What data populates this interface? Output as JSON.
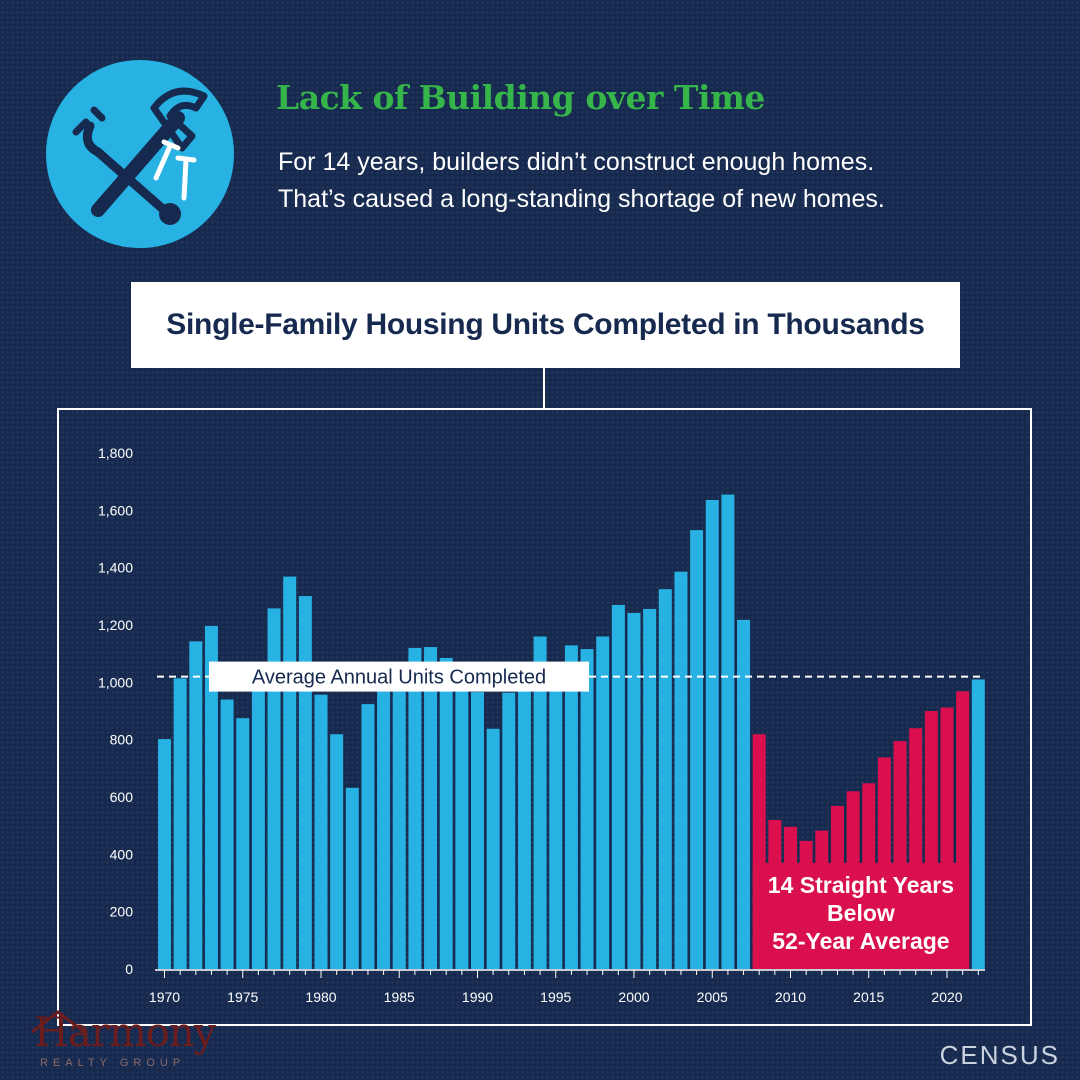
{
  "header": {
    "title": "Lack of Building over Time",
    "subtitle_line1": "For 14 years, builders didn’t construct enough homes.",
    "subtitle_line2": "That’s caused a long-standing shortage of new homes."
  },
  "icons": {
    "main": "hammer-wrench-nails-icon"
  },
  "colors": {
    "background": "#16294f",
    "accent_blue": "#27b2e3",
    "accent_green": "#35b54a",
    "highlight_red": "#d90f4e",
    "icon_dark": "#16294f"
  },
  "chart_data": {
    "type": "bar",
    "title": "Single-Family Housing Units Completed in Thousands",
    "xlabel": "",
    "ylabel": "",
    "ylim": [
      0,
      1800
    ],
    "y_ticks": [
      "0",
      "200",
      "400",
      "600",
      "800",
      "1,000",
      "1,200",
      "1,400",
      "1,600",
      "1,800"
    ],
    "x_tick_labels": [
      "1970",
      "1975",
      "1980",
      "1985",
      "1990",
      "1995",
      "2000",
      "2005",
      "2010",
      "2015",
      "2020"
    ],
    "categories": [
      1970,
      1971,
      1972,
      1973,
      1974,
      1975,
      1976,
      1977,
      1978,
      1979,
      1980,
      1981,
      1982,
      1983,
      1984,
      1985,
      1986,
      1987,
      1988,
      1989,
      1990,
      1991,
      1992,
      1993,
      1994,
      1995,
      1996,
      1997,
      1998,
      1999,
      2000,
      2001,
      2002,
      2003,
      2004,
      2005,
      2006,
      2007,
      2008,
      2009,
      2010,
      2011,
      2012,
      2013,
      2014,
      2015,
      2016,
      2017,
      2018,
      2019,
      2020,
      2021,
      2022
    ],
    "values": [
      802,
      1014,
      1143,
      1197,
      940,
      875,
      1034,
      1258,
      1369,
      1301,
      957,
      819,
      632,
      924,
      1025,
      1072,
      1120,
      1123,
      1085,
      1026,
      966,
      838,
      964,
      1039,
      1160,
      1066,
      1129,
      1116,
      1160,
      1270,
      1242,
      1256,
      1325,
      1386,
      1531,
      1636,
      1655,
      1218,
      819,
      520,
      496,
      447,
      483,
      569,
      620,
      648,
      738,
      795,
      840,
      900,
      912,
      969,
      1010
    ],
    "highlight_range": [
      2008,
      2021
    ],
    "average": 1020,
    "average_label": "Average Annual Units Completed",
    "annotation_lines": [
      "14 Straight Years",
      "Below",
      "52-Year Average"
    ]
  },
  "branding": {
    "logo_name": "Harmony",
    "logo_sub": "REALTY GROUP",
    "source": "CENSUS"
  }
}
